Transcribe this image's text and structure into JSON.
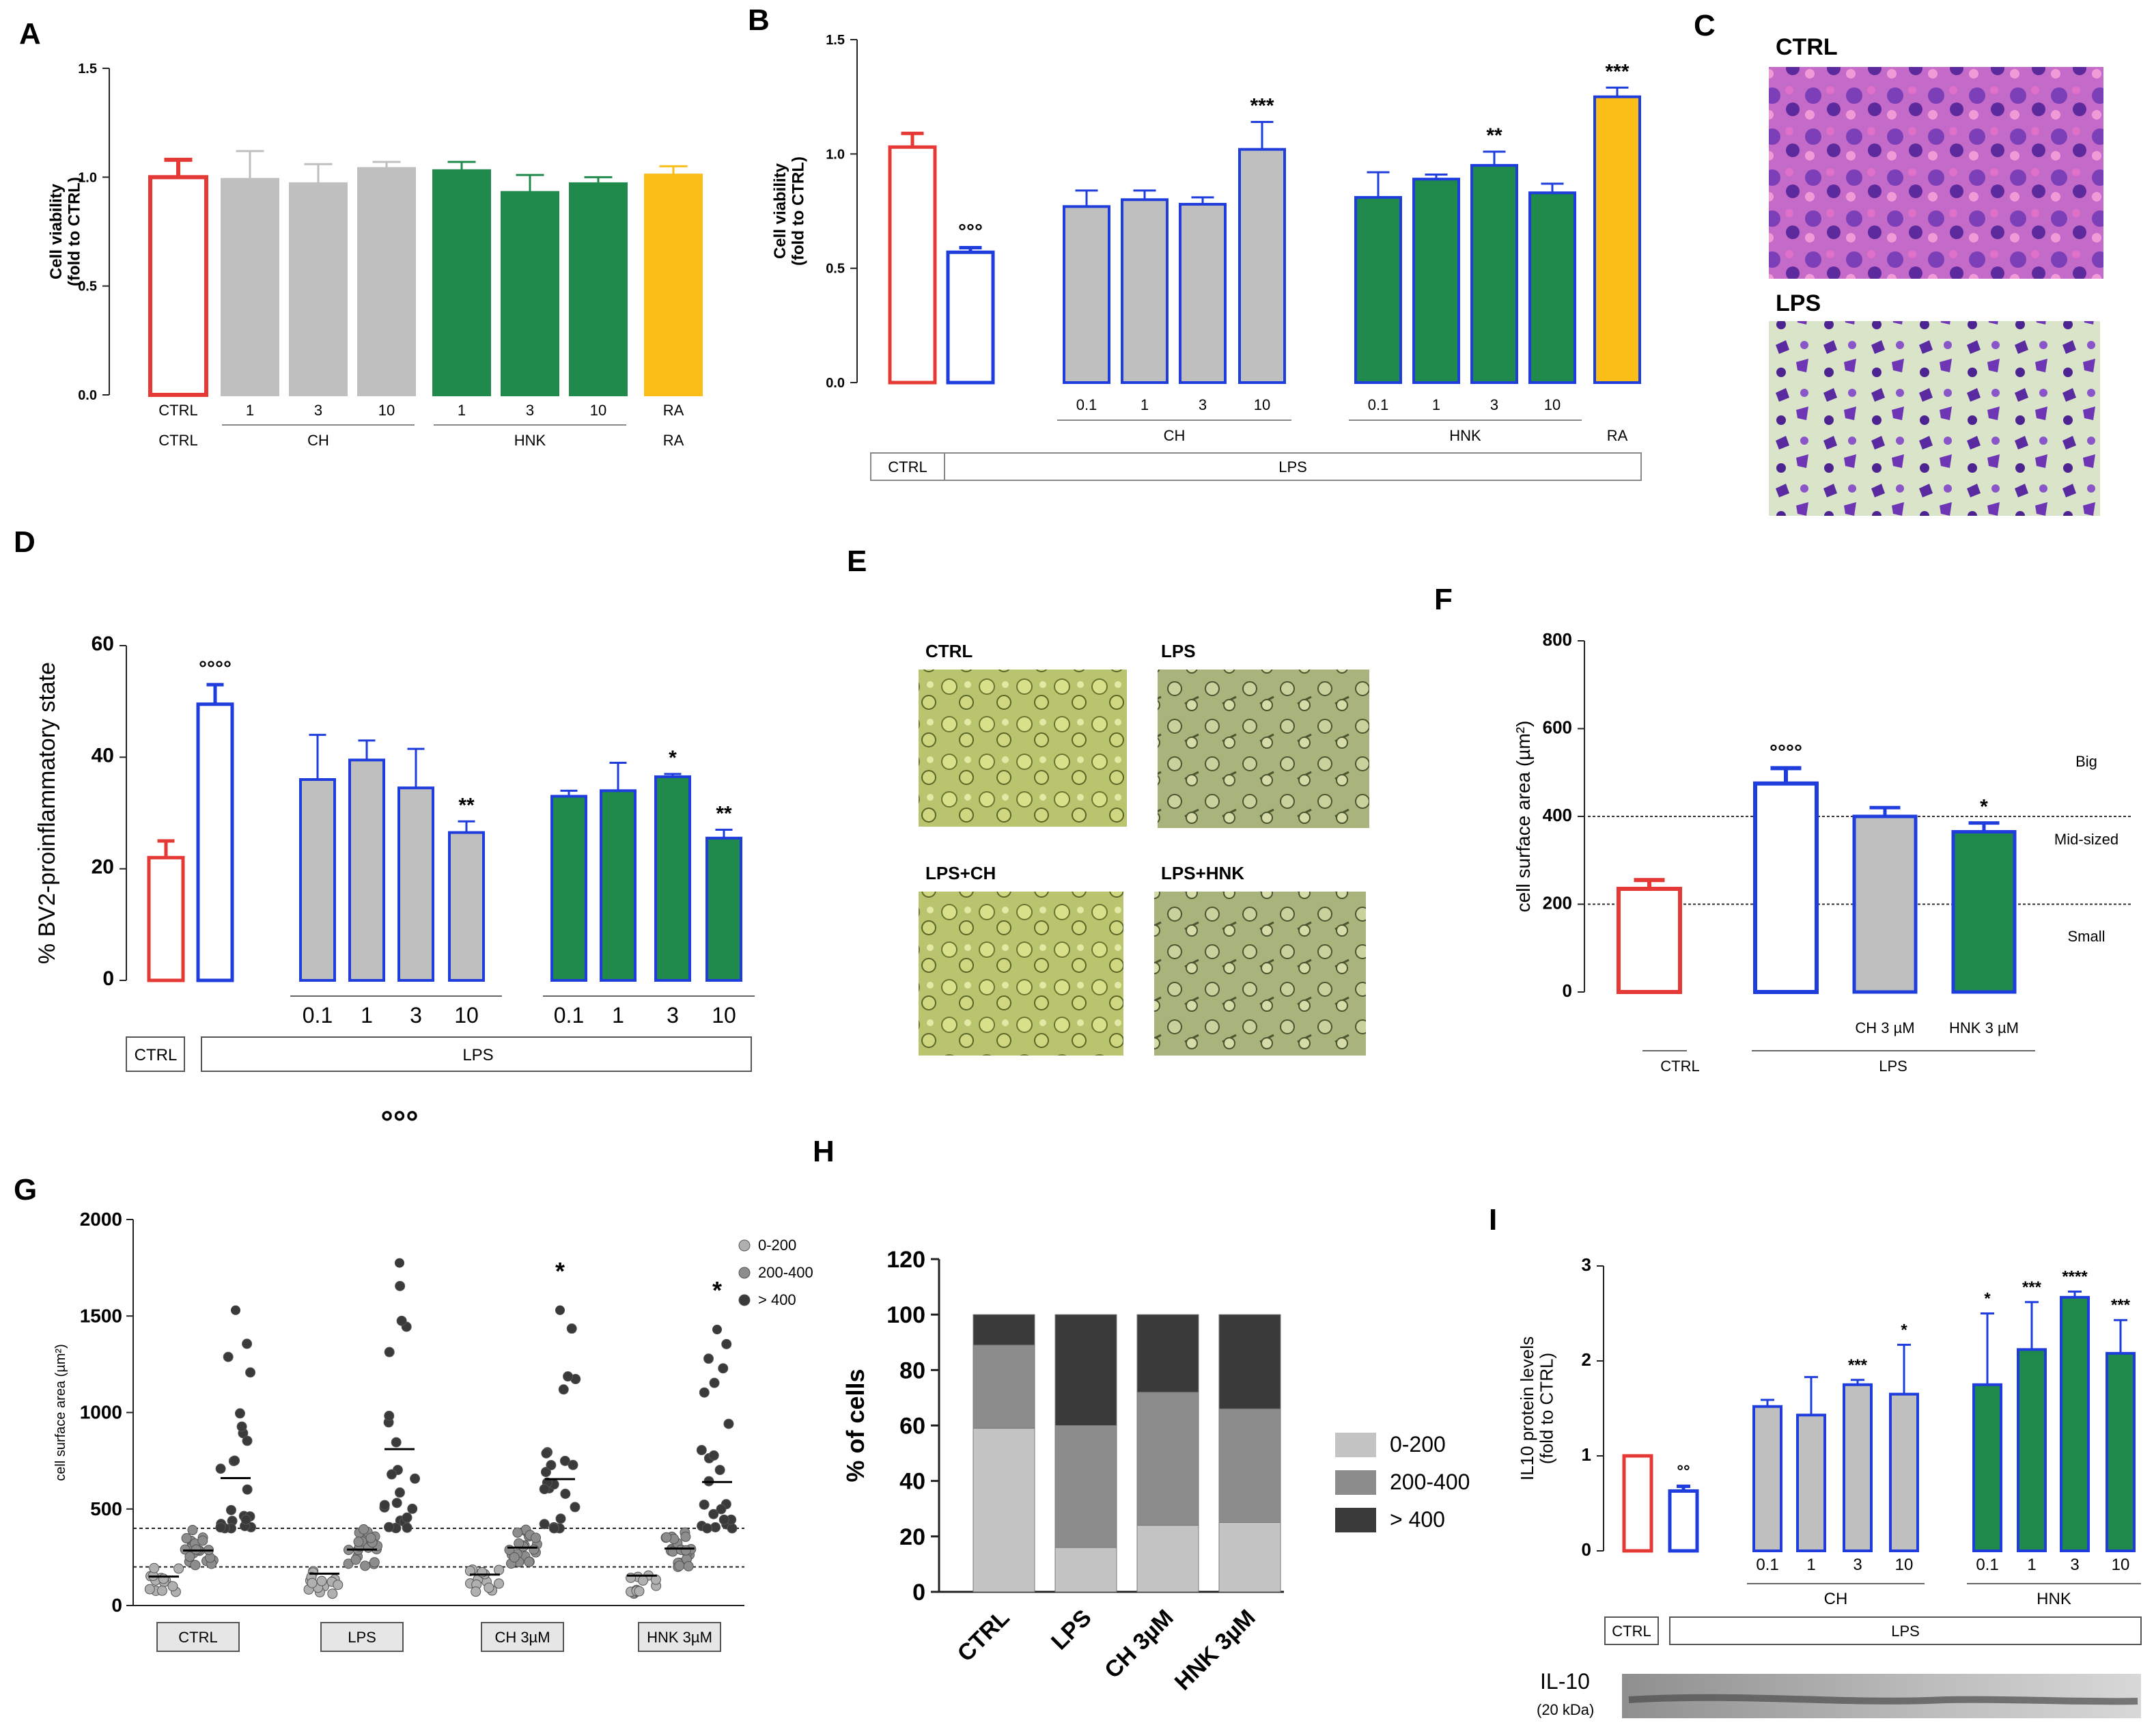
{
  "figure": {
    "panel_labels": [
      "A",
      "B",
      "C",
      "D",
      "E",
      "F",
      "G",
      "H",
      "I"
    ],
    "colors": {
      "red": "#e53935",
      "blue": "#1e3ddc",
      "gray": "#bfbfbf",
      "green": "#1f8a4c",
      "orange": "#fbbd18",
      "ctrl_gray": "#c8c8c8"
    }
  },
  "chart_data": [
    {
      "id": "A",
      "type": "bar",
      "ylabel": "Cell viability\n(fold to CTRL)",
      "yticks": [
        "0.0",
        "0.5",
        "1.0",
        "1.5"
      ],
      "ylim": [
        0,
        1.5
      ],
      "categories": [
        "CTRL",
        "1",
        "3",
        "10",
        "1",
        "3",
        "10",
        "RA"
      ],
      "values": [
        1.0,
        0.99,
        0.97,
        1.04,
        1.03,
        0.93,
        0.97,
        1.01
      ],
      "errors": [
        0.08,
        0.13,
        0.09,
        0.03,
        0.04,
        0.08,
        0.03,
        0.04
      ],
      "groups": [
        {
          "label": "CTRL",
          "from": 0,
          "to": 0
        },
        {
          "label": "CH",
          "from": 1,
          "to": 3
        },
        {
          "label": "HNK",
          "from": 4,
          "to": 6
        },
        {
          "label": "RA",
          "from": 7,
          "to": 7
        }
      ]
    },
    {
      "id": "B",
      "type": "bar",
      "ylabel": "Cell viability\n(fold to CTRL)",
      "yticks": [
        "0.0",
        "0.5",
        "1.0",
        "1.5"
      ],
      "ylim": [
        0,
        1.5
      ],
      "categories": [
        "",
        "",
        "0.1",
        "1",
        "3",
        "10",
        "0.1",
        "1",
        "3",
        "10",
        ""
      ],
      "values": [
        1.03,
        0.57,
        0.77,
        0.8,
        0.78,
        1.02,
        0.81,
        0.89,
        0.95,
        0.83,
        1.25
      ],
      "errors": [
        0.06,
        0.02,
        0.07,
        0.04,
        0.03,
        0.12,
        0.11,
        0.02,
        0.06,
        0.04,
        0.04
      ],
      "sig": [
        "",
        "°°°",
        "",
        "",
        "",
        "***",
        "",
        "",
        "**",
        "",
        "***"
      ],
      "groups": [
        {
          "label": "CH",
          "from": 2,
          "to": 5
        },
        {
          "label": "HNK",
          "from": 6,
          "to": 9
        },
        {
          "label": "RA",
          "from": 10,
          "to": 10
        }
      ],
      "treatment_boxes": [
        "CTRL",
        "LPS"
      ]
    },
    {
      "id": "D",
      "type": "bar",
      "ylabel": "% BV2-proinflammatory state",
      "yticks": [
        "0",
        "20",
        "40",
        "60"
      ],
      "ylim": [
        0,
        60
      ],
      "categories": [
        "",
        "",
        "0.1",
        "1",
        "3",
        "10",
        "0.1",
        "1",
        "3",
        "10"
      ],
      "values": [
        22.0,
        49.5,
        36.0,
        39.5,
        34.5,
        26.5,
        33.0,
        34.0,
        36.5,
        25.5
      ],
      "errors": [
        3.0,
        3.5,
        8.0,
        3.5,
        7.0,
        2.0,
        1.0,
        5.0,
        0.5,
        1.5
      ],
      "sig": [
        "",
        "°°°°",
        "",
        "",
        "",
        "**",
        "",
        "",
        "*",
        "**"
      ],
      "treatment_boxes": [
        "CTRL",
        "LPS"
      ]
    },
    {
      "id": "F",
      "type": "bar",
      "ylabel": "cell surface area (µm²)",
      "yticks": [
        "0",
        "200",
        "400",
        "600",
        "800"
      ],
      "ylim": [
        0,
        800
      ],
      "categories": [
        "",
        "",
        "CH 3 µM",
        "HNK 3 µM"
      ],
      "values": [
        235,
        475,
        400,
        365
      ],
      "errors": [
        20,
        35,
        20,
        20
      ],
      "sig": [
        "",
        "°°°°",
        "",
        "*"
      ],
      "zones": [
        "Big",
        "Mid-sized",
        "Small"
      ],
      "groups": [
        {
          "label": "CTRL",
          "from": 0,
          "to": 0
        },
        {
          "label": "LPS",
          "from": 1,
          "to": 3
        }
      ]
    },
    {
      "id": "G",
      "type": "scatter",
      "ylabel": "cell surface area (µm²)",
      "yticks": [
        "0",
        "500",
        "1000",
        "1500",
        "2000"
      ],
      "ylim": [
        0,
        2000
      ],
      "groups": [
        "CTRL",
        "LPS",
        "CH 3µM",
        "HNK 3µM"
      ],
      "legend": [
        "0-200",
        "200-400",
        "> 400"
      ],
      "means": [
        [
          150,
          285,
          660
        ],
        [
          165,
          290,
          810
        ],
        [
          160,
          300,
          655
        ],
        [
          155,
          295,
          640
        ]
      ],
      "maxima": [
        1530,
        1775,
        1530,
        1430
      ],
      "sig": [
        "",
        "°°°",
        "*",
        "*"
      ]
    },
    {
      "id": "H",
      "type": "bar",
      "stacked": true,
      "ylabel": "% of cells",
      "yticks": [
        "0",
        "20",
        "40",
        "60",
        "80",
        "100",
        "120"
      ],
      "ylim": [
        0,
        120
      ],
      "categories": [
        "CTRL",
        "LPS",
        "CH 3µM",
        "HNK 3µM"
      ],
      "series": [
        {
          "name": "0-200",
          "values": [
            59,
            16,
            24,
            25
          ]
        },
        {
          "name": "200-400",
          "values": [
            30,
            44,
            48,
            41
          ]
        },
        {
          "name": "> 400",
          "values": [
            11,
            40,
            28,
            34
          ]
        }
      ]
    },
    {
      "id": "I",
      "type": "bar",
      "ylabel": "IL10 protein levels\n(fold to CTRL)",
      "yticks": [
        "0",
        "1",
        "2",
        "3"
      ],
      "ylim": [
        0,
        3
      ],
      "categories": [
        "",
        "",
        "0.1",
        "1",
        "3",
        "10",
        "0.1",
        "1",
        "3",
        "10"
      ],
      "values": [
        1.0,
        0.63,
        1.52,
        1.43,
        1.75,
        1.65,
        1.75,
        2.12,
        2.67,
        2.08
      ],
      "errors": [
        0.0,
        0.05,
        0.07,
        0.4,
        0.05,
        0.52,
        0.75,
        0.5,
        0.06,
        0.35
      ],
      "sig": [
        "",
        "°°",
        "",
        "",
        "***",
        "*",
        "*",
        "***",
        "****",
        "***"
      ],
      "groups": [
        {
          "label": "CH",
          "from": 2,
          "to": 5
        },
        {
          "label": "HNK",
          "from": 6,
          "to": 9
        }
      ],
      "treatment_boxes": [
        "CTRL",
        "LPS"
      ],
      "blot_label": "IL-10",
      "blot_sub": "(20 kDa)"
    }
  ],
  "panelC": {
    "labels": [
      "CTRL",
      "LPS"
    ]
  },
  "panelE": {
    "labels": [
      "CTRL",
      "LPS",
      "LPS+CH",
      "LPS+HNK"
    ]
  }
}
